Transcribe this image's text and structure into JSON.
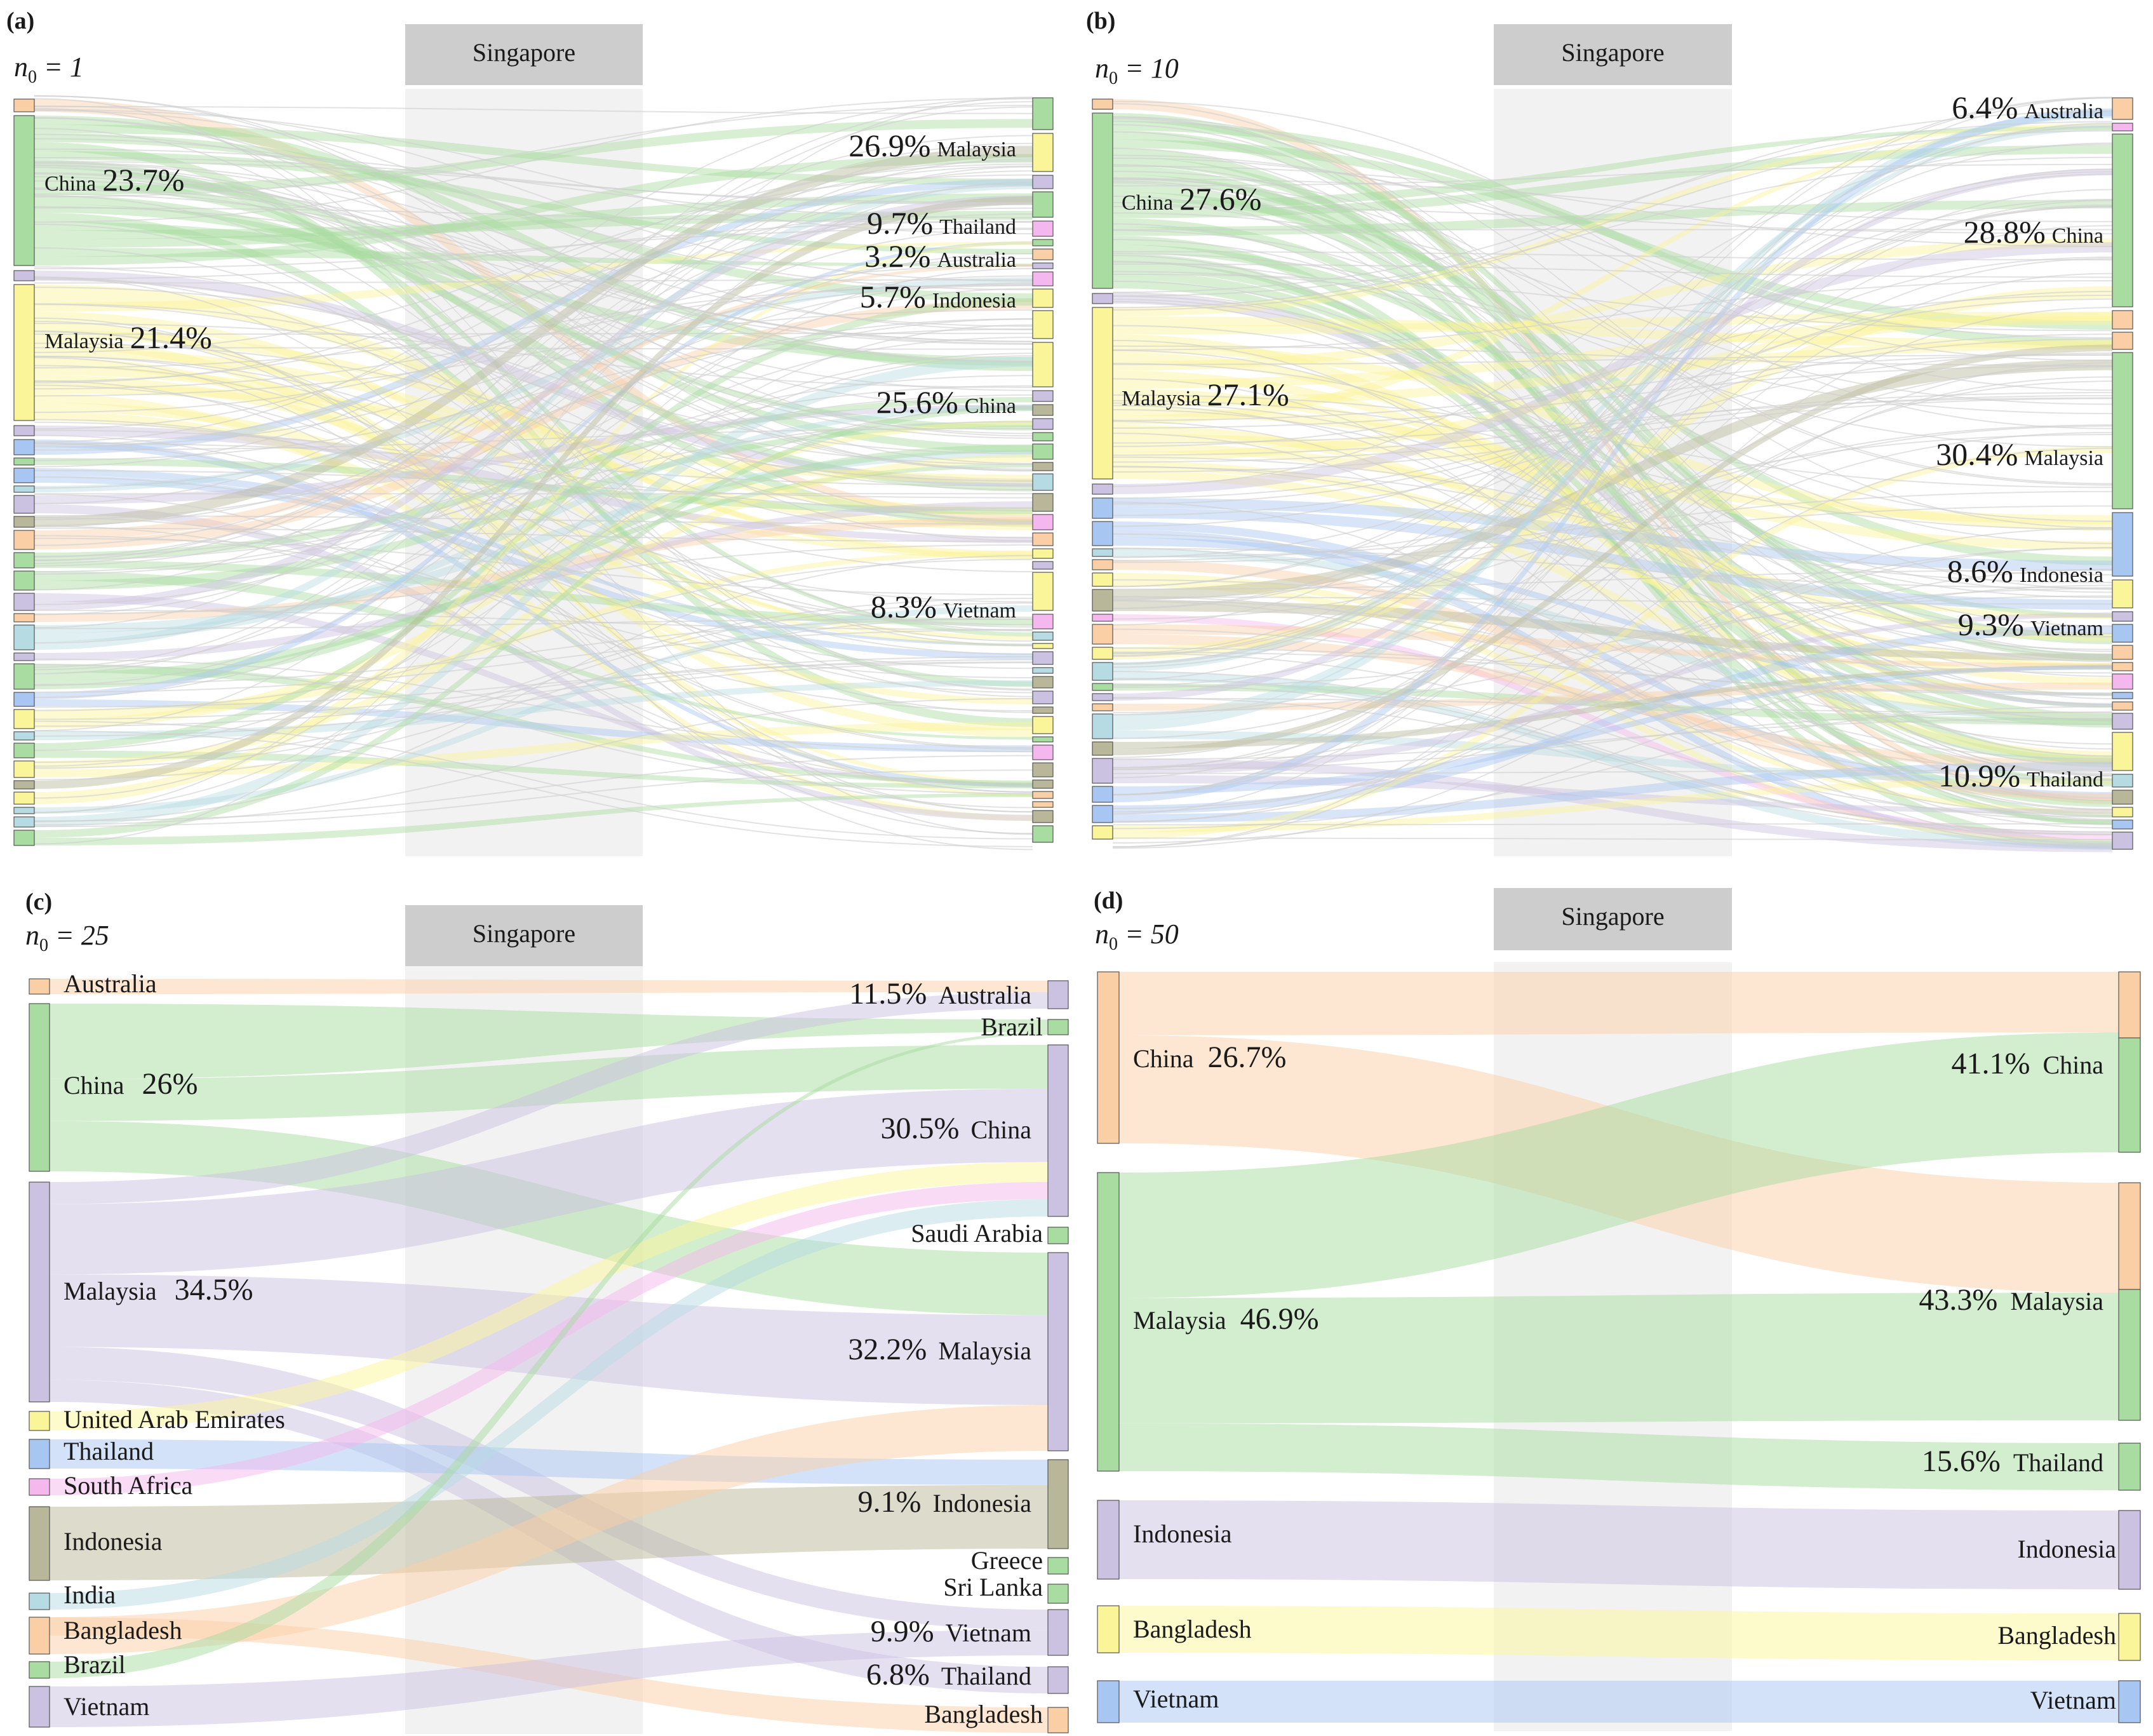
{
  "colors": {
    "orange": "#fbcfa6",
    "green": "#a8dca0",
    "yellow": "#fbf59a",
    "purple": "#cbc2e1",
    "blue": "#a8c6f2",
    "pink": "#f5b8ee",
    "olive": "#b9b79a",
    "lightblue": "#b7dbe3",
    "hub": "#cdcdcd",
    "hub_band": "#f2f2f2",
    "node_stroke": "#555555"
  },
  "chart_data": [
    {
      "panel": "(a)",
      "type": "sankey",
      "hub": "Singapore",
      "n0_symbol": "n",
      "n0_sub": "0",
      "n0_eq": " = 1",
      "dense_background": true,
      "left_labeled": [
        {
          "country": "China",
          "percent": "23.7%",
          "color": "green"
        },
        {
          "country": "Malaysia",
          "percent": "21.4%",
          "color": "yellow"
        }
      ],
      "right_labeled": [
        {
          "country": "Malaysia",
          "percent": "26.9%"
        },
        {
          "country": "Thailand",
          "percent": "9.7%"
        },
        {
          "country": "Australia",
          "percent": "3.2%"
        },
        {
          "country": "Indonesia",
          "percent": "5.7%"
        },
        {
          "country": "China",
          "percent": "25.6%"
        },
        {
          "country": "Vietnam",
          "percent": "8.3%"
        }
      ]
    },
    {
      "panel": "(b)",
      "type": "sankey",
      "hub": "Singapore",
      "n0_symbol": "n",
      "n0_sub": "0",
      "n0_eq": " = 10",
      "dense_background": true,
      "left_labeled": [
        {
          "country": "China",
          "percent": "27.6%",
          "color": "green"
        },
        {
          "country": "Malaysia",
          "percent": "27.1%",
          "color": "yellow"
        }
      ],
      "right_labeled": [
        {
          "country": "Australia",
          "percent": "6.4%"
        },
        {
          "country": "China",
          "percent": "28.8%"
        },
        {
          "country": "Malaysia",
          "percent": "30.4%"
        },
        {
          "country": "Indonesia",
          "percent": "8.6%"
        },
        {
          "country": "Vietnam",
          "percent": "9.3%"
        },
        {
          "country": "Thailand",
          "percent": "10.9%"
        }
      ]
    },
    {
      "panel": "(c)",
      "type": "sankey",
      "hub": "Singapore",
      "n0_symbol": "n",
      "n0_sub": "0",
      "n0_eq": " = 25",
      "left_nodes": [
        {
          "country": "Australia",
          "percent": "",
          "color": "orange"
        },
        {
          "country": "China",
          "percent": "26%",
          "color": "green"
        },
        {
          "country": "Malaysia",
          "percent": "34.5%",
          "color": "purple"
        },
        {
          "country": "United Arab Emirates",
          "percent": "",
          "color": "yellow"
        },
        {
          "country": "Thailand",
          "percent": "",
          "color": "blue"
        },
        {
          "country": "South Africa",
          "percent": "",
          "color": "pink"
        },
        {
          "country": "Indonesia",
          "percent": "",
          "color": "olive"
        },
        {
          "country": "India",
          "percent": "",
          "color": "lightblue"
        },
        {
          "country": "Bangladesh",
          "percent": "",
          "color": "orange"
        },
        {
          "country": "Brazil",
          "percent": "",
          "color": "green"
        },
        {
          "country": "Vietnam",
          "percent": "",
          "color": "purple"
        }
      ],
      "right_nodes": [
        {
          "country": "Australia",
          "percent": "11.5%"
        },
        {
          "country": "Brazil",
          "percent": ""
        },
        {
          "country": "China",
          "percent": "30.5%"
        },
        {
          "country": "Saudi Arabia",
          "percent": ""
        },
        {
          "country": "Malaysia",
          "percent": "32.2%"
        },
        {
          "country": "Indonesia",
          "percent": "9.1%"
        },
        {
          "country": "Greece",
          "percent": ""
        },
        {
          "country": "Sri Lanka",
          "percent": ""
        },
        {
          "country": "Vietnam",
          "percent": "9.9%"
        },
        {
          "country": "Thailand",
          "percent": "6.8%"
        },
        {
          "country": "Bangladesh",
          "percent": ""
        }
      ]
    },
    {
      "panel": "(d)",
      "type": "sankey",
      "hub": "Singapore",
      "n0_symbol": "n",
      "n0_sub": "0",
      "n0_eq": " = 50",
      "left_nodes": [
        {
          "country": "China",
          "percent": "26.7%",
          "color": "orange"
        },
        {
          "country": "Malaysia",
          "percent": "46.9%",
          "color": "green"
        },
        {
          "country": "Indonesia",
          "percent": "",
          "color": "purple"
        },
        {
          "country": "Bangladesh",
          "percent": "",
          "color": "yellow"
        },
        {
          "country": "Vietnam",
          "percent": "",
          "color": "blue"
        }
      ],
      "right_nodes": [
        {
          "country": "China",
          "percent": "41.1%"
        },
        {
          "country": "Malaysia",
          "percent": "43.3%"
        },
        {
          "country": "Thailand",
          "percent": "15.6%"
        },
        {
          "country": "Indonesia",
          "percent": ""
        },
        {
          "country": "Bangladesh",
          "percent": ""
        },
        {
          "country": "Vietnam",
          "percent": ""
        }
      ],
      "flows": [
        {
          "from": "China",
          "to": "China",
          "color": "orange"
        },
        {
          "from": "China",
          "to": "Malaysia",
          "color": "orange"
        },
        {
          "from": "Malaysia",
          "to": "China",
          "color": "green"
        },
        {
          "from": "Malaysia",
          "to": "Malaysia",
          "color": "green"
        },
        {
          "from": "Malaysia",
          "to": "Thailand",
          "color": "green"
        },
        {
          "from": "Indonesia",
          "to": "Indonesia",
          "color": "purple"
        },
        {
          "from": "Bangladesh",
          "to": "Bangladesh",
          "color": "yellow"
        },
        {
          "from": "Vietnam",
          "to": "Vietnam",
          "color": "blue"
        }
      ]
    }
  ]
}
